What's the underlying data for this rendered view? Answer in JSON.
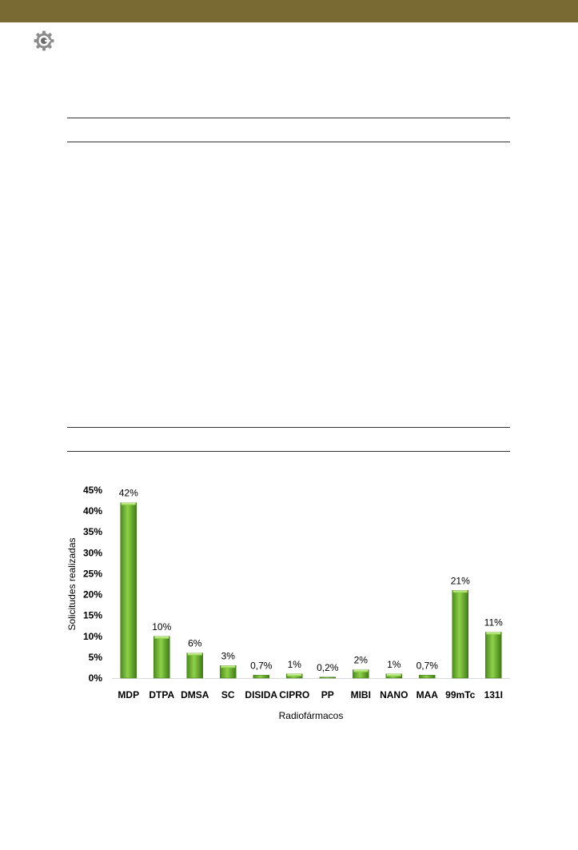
{
  "header": {
    "logo_icon": "gear-logo-icon",
    "band_color": "#786a32"
  },
  "chart_data": {
    "type": "bar",
    "categories": [
      "MDP",
      "DTPA",
      "DMSA",
      "SC",
      "DISIDA",
      "CIPRO",
      "PP",
      "MIBI",
      "NANO",
      "MAA",
      "99mTc",
      "131I"
    ],
    "values": [
      42,
      10,
      6,
      3,
      0.7,
      1,
      0.2,
      2,
      1,
      0.7,
      21,
      11
    ],
    "data_labels": [
      "42%",
      "10%",
      "6%",
      "3%",
      "0,7%",
      "1%",
      "0,2%",
      "2%",
      "1%",
      "0,7%",
      "21%",
      "11%"
    ],
    "y_ticks": [
      "0%",
      "5%",
      "10%",
      "15%",
      "20%",
      "25%",
      "30%",
      "35%",
      "40%",
      "45%"
    ],
    "ylim": [
      0,
      45
    ],
    "xlabel": "Radiofármacos",
    "ylabel": "Solicitudes realizadas",
    "bar_color": "#6fb82e",
    "grid": false
  }
}
